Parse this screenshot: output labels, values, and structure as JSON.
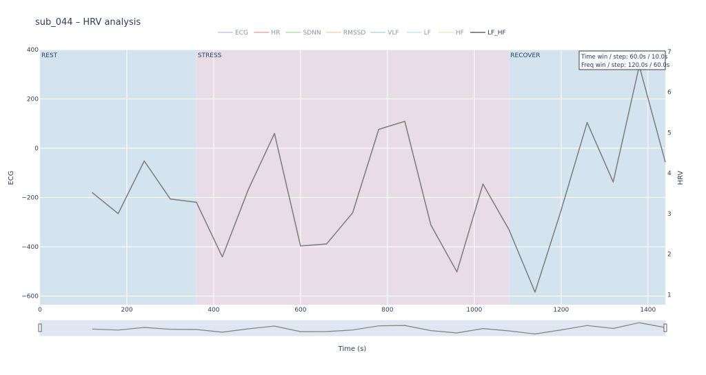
{
  "chart_data": {
    "type": "line",
    "title": "sub_044 – HRV analysis",
    "xlabel": "Time (s)",
    "ylabel_left": "ECG",
    "ylabel_right": "HRV",
    "xlim": [
      0,
      1440
    ],
    "ylim_left": [
      -635,
      400
    ],
    "ylim_right": [
      0.75,
      7.05
    ],
    "x_ticks": [
      0,
      200,
      400,
      600,
      800,
      1000,
      1200,
      1400
    ],
    "y_left_ticks": [
      -600,
      -400,
      -200,
      0,
      200,
      400
    ],
    "y_right_ticks": [
      1,
      2,
      3,
      4,
      5,
      6,
      7
    ],
    "grid": true,
    "legend_position": "top-center",
    "legend": [
      {
        "name": "ECG",
        "color": "#8fa8cf",
        "active": false
      },
      {
        "name": "HR",
        "color": "#e06c6c",
        "active": false
      },
      {
        "name": "SDNN",
        "color": "#7fc97f",
        "active": false
      },
      {
        "name": "RMSSD",
        "color": "#f5b971",
        "active": false
      },
      {
        "name": "VLF",
        "color": "#86b8d6",
        "active": false
      },
      {
        "name": "LF",
        "color": "#9ad9e6",
        "active": false
      },
      {
        "name": "HF",
        "color": "#ecd68a",
        "active": false
      },
      {
        "name": "LF_HF",
        "color": "#444444",
        "active": true
      }
    ],
    "regions": [
      {
        "label": "REST",
        "x0": 0,
        "x1": 360,
        "color": "#d3e4ef"
      },
      {
        "label": "STRESS",
        "x0": 360,
        "x1": 1080,
        "color": "#e8dce7"
      },
      {
        "label": "RECOVER",
        "x0": 1080,
        "x1": 1440,
        "color": "#d3e4ef"
      }
    ],
    "series": [
      {
        "name": "LF_HF",
        "axis": "right",
        "color": "#808080",
        "x": [
          120,
          180,
          240,
          300,
          360,
          420,
          480,
          540,
          600,
          660,
          720,
          780,
          840,
          900,
          960,
          1020,
          1080,
          1140,
          1200,
          1260,
          1320,
          1380,
          1440
        ],
        "y": [
          3.52,
          3.0,
          4.3,
          3.36,
          3.28,
          1.93,
          3.6,
          4.98,
          2.2,
          2.25,
          3.02,
          5.08,
          5.28,
          2.72,
          1.56,
          3.73,
          2.6,
          1.06,
          3.08,
          5.25,
          3.78,
          6.65,
          4.27
        ]
      }
    ],
    "annotation": [
      "Time win / step: 60.0s / 10.0s",
      "Freq win / step: 120.0s / 60.0s"
    ]
  }
}
